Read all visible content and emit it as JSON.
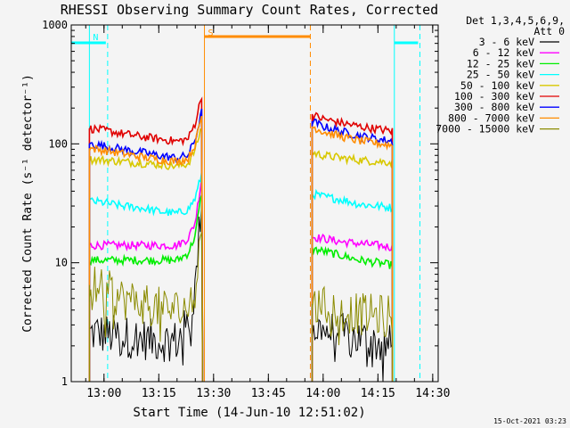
{
  "chart_data": {
    "type": "line",
    "title": "RHESSI Observing Summary Count Rates, Corrected",
    "xlabel": "Start Time (14-Jun-10 12:51:02)",
    "ylabel": "Corrected Count Rate (s⁻¹ detector⁻¹)",
    "yscale": "log",
    "ylim": [
      1,
      1000
    ],
    "xlim": [
      "12:51:02",
      "14:31:30"
    ],
    "x_ticks": [
      "13:00",
      "13:15",
      "13:30",
      "13:45",
      "14:00",
      "14:15",
      "14:30"
    ],
    "y_ticks": [
      "1",
      "10",
      "100",
      "1000"
    ],
    "grid": false,
    "legend_position": "right",
    "legend_header": [
      "Det 1,3,4,5,6,9,",
      "Att 0"
    ],
    "series": [
      {
        "name": "3 - 6 keV",
        "color": "#000000",
        "segments": [
          {
            "x": [
              "12:56",
              "12:58",
              "13:00",
              "13:05",
              "13:10",
              "13:15",
              "13:20",
              "13:23",
              "13:25",
              "13:27"
            ],
            "y": [
              2.5,
              2.6,
              2.5,
              2.4,
              2.3,
              2.2,
              2.2,
              3.0,
              6.0,
              50
            ]
          },
          {
            "x": [
              "13:57",
              "14:00",
              "14:05",
              "14:10",
              "14:15",
              "14:19"
            ],
            "y": [
              2.8,
              2.7,
              2.5,
              2.3,
              2.1,
              2.0
            ]
          }
        ]
      },
      {
        "name": "6 - 12 keV",
        "color": "#ff00ff",
        "segments": [
          {
            "x": [
              "12:56",
              "13:00",
              "13:05",
              "13:10",
              "13:15",
              "13:20",
              "13:23",
              "13:25",
              "13:27"
            ],
            "y": [
              14,
              14,
              14,
              14,
              14,
              14,
              16,
              22,
              60
            ]
          },
          {
            "x": [
              "13:57",
              "14:00",
              "14:05",
              "14:10",
              "14:15",
              "14:19"
            ],
            "y": [
              16.5,
              16,
              15,
              14.5,
              14,
              13.5
            ]
          }
        ]
      },
      {
        "name": "12 - 25 keV",
        "color": "#00ee00",
        "segments": [
          {
            "x": [
              "12:56",
              "13:00",
              "13:05",
              "13:10",
              "13:15",
              "13:20",
              "13:23",
              "13:25",
              "13:27"
            ],
            "y": [
              10.5,
              10.5,
              10.5,
              10.5,
              10.5,
              10.5,
              12,
              17,
              45
            ]
          },
          {
            "x": [
              "13:57",
              "14:00",
              "14:05",
              "14:10",
              "14:15",
              "14:19"
            ],
            "y": [
              13,
              12.5,
              11.5,
              10.5,
              10,
              9.5
            ]
          }
        ]
      },
      {
        "name": "25 - 50 keV",
        "color": "#00ffff",
        "segments": [
          {
            "x": [
              "12:56",
              "13:00",
              "13:05",
              "13:10",
              "13:15",
              "13:20",
              "13:23",
              "13:25",
              "13:27"
            ],
            "y": [
              33,
              32,
              30,
              29,
              27,
              26,
              28,
              35,
              60
            ]
          },
          {
            "x": [
              "13:57",
              "14:00",
              "14:05",
              "14:10",
              "14:15",
              "14:19"
            ],
            "y": [
              38,
              36,
              34,
              31,
              30,
              29
            ]
          }
        ]
      },
      {
        "name": "50 - 100 keV",
        "color": "#d8c800",
        "segments": [
          {
            "x": [
              "12:56",
              "13:00",
              "13:05",
              "13:10",
              "13:15",
              "13:20",
              "13:23",
              "13:25",
              "13:27"
            ],
            "y": [
              74,
              73,
              71,
              69,
              67,
              65,
              68,
              90,
              150
            ]
          },
          {
            "x": [
              "13:57",
              "14:00",
              "14:05",
              "14:10",
              "14:15",
              "14:19"
            ],
            "y": [
              84,
              80,
              76,
              73,
              71,
              70
            ]
          }
        ]
      },
      {
        "name": "100 - 300 keV",
        "color": "#e00000",
        "segments": [
          {
            "x": [
              "12:56",
              "13:00",
              "13:05",
              "13:10",
              "13:15",
              "13:20",
              "13:23",
              "13:25",
              "13:27"
            ],
            "y": [
              135,
              130,
              122,
              115,
              110,
              105,
              110,
              150,
              280
            ]
          },
          {
            "x": [
              "13:57",
              "14:00",
              "14:05",
              "14:10",
              "14:15",
              "14:19"
            ],
            "y": [
              175,
              162,
              150,
              140,
              133,
              128
            ]
          }
        ]
      },
      {
        "name": "300 - 800 keV",
        "color": "#0000ff",
        "segments": [
          {
            "x": [
              "12:56",
              "13:00",
              "13:05",
              "13:10",
              "13:15",
              "13:20",
              "13:23",
              "13:25",
              "13:27"
            ],
            "y": [
              100,
              96,
              90,
              85,
              80,
              76,
              80,
              110,
              200
            ]
          },
          {
            "x": [
              "13:57",
              "14:00",
              "14:05",
              "14:10",
              "14:15",
              "14:19"
            ],
            "y": [
              155,
              140,
              127,
              117,
              110,
              105
            ]
          }
        ]
      },
      {
        "name": "800 - 7000 keV",
        "color": "#ff8c00",
        "segments": [
          {
            "x": [
              "12:56",
              "13:00",
              "13:05",
              "13:10",
              "13:15",
              "13:20",
              "13:23",
              "13:25",
              "13:27"
            ],
            "y": [
              92,
              88,
              83,
              78,
              74,
              71,
              75,
              100,
              190
            ]
          },
          {
            "x": [
              "13:57",
              "14:00",
              "14:05",
              "14:10",
              "14:15",
              "14:19"
            ],
            "y": [
              140,
              127,
              115,
              106,
              101,
              97
            ]
          }
        ]
      },
      {
        "name": "7000 - 15000 keV",
        "color": "#8b8b00",
        "segments": [
          {
            "x": [
              "12:56",
              "13:00",
              "13:05",
              "13:10",
              "13:15",
              "13:20",
              "13:23",
              "13:25",
              "13:27"
            ],
            "y": [
              6.5,
              6,
              5,
              4.6,
              4.2,
              4,
              4.2,
              6,
              25
            ]
          },
          {
            "x": [
              "13:57",
              "14:00",
              "14:05",
              "14:10",
              "14:15",
              "14:19"
            ],
            "y": [
              4.5,
              4.2,
              3.9,
              3.7,
              3.6,
              3.6
            ]
          }
        ]
      }
    ],
    "markers": [
      {
        "label": "N",
        "color": "#00ffff",
        "solid": [
          "12:56:00",
          "14:19:30"
        ],
        "dashed": [
          "13:01:00",
          "14:26:30"
        ],
        "bars": [
          [
            "12:51:02",
            "13:00:30"
          ],
          [
            "14:19:30",
            "14:26:00"
          ]
        ]
      },
      {
        "label": "S",
        "color": "#ff8c00",
        "solid": [
          "13:27:30"
        ],
        "dashed": [
          "13:56:30"
        ],
        "bars": [
          [
            "13:27:30",
            "13:56:30"
          ]
        ]
      }
    ]
  },
  "footer_timestamp": "15-Oct-2021 03:23"
}
